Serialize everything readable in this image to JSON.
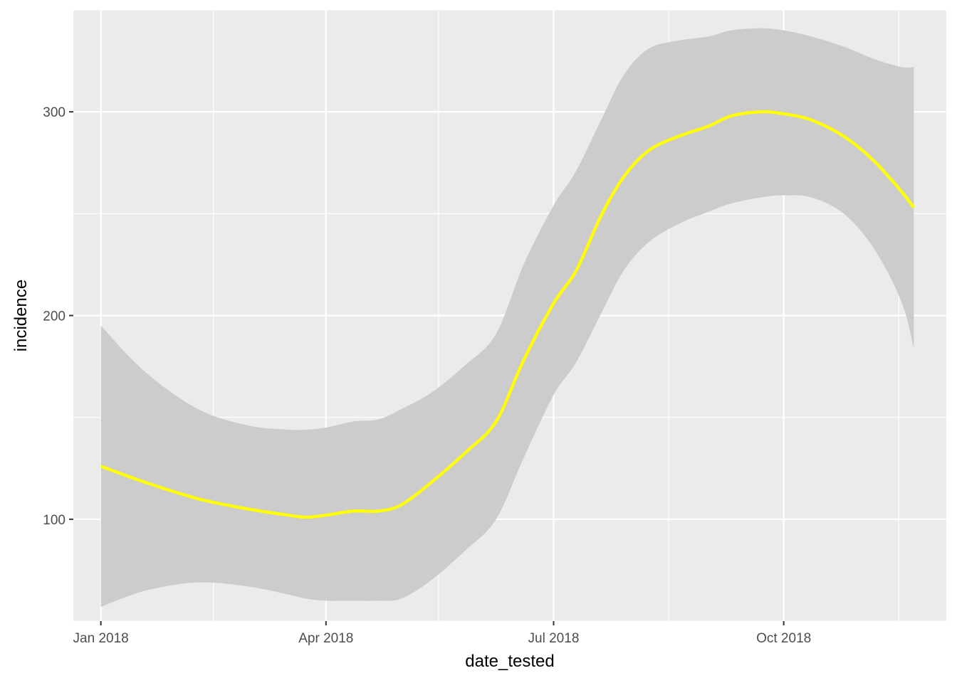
{
  "chart_data": {
    "type": "line",
    "xlabel": "date_tested",
    "ylabel": "incidence",
    "x_range": [
      "2017-12-21",
      "2018-12-05"
    ],
    "ylim": [
      50,
      350
    ],
    "grid": true,
    "legend": "none",
    "x_ticks": [
      {
        "date": "2018-01-01",
        "label": "Jan 2018"
      },
      {
        "date": "2018-04-01",
        "label": "Apr 2018"
      },
      {
        "date": "2018-07-01",
        "label": "Jul 2018"
      },
      {
        "date": "2018-10-01",
        "label": "Oct 2018"
      }
    ],
    "x_minor_ticks": [
      "2018-02-15",
      "2018-05-16",
      "2018-08-16",
      "2018-11-16"
    ],
    "y_ticks": [
      100,
      200,
      300
    ],
    "y_minor_ticks": [
      50,
      150,
      250,
      350
    ],
    "series": [
      {
        "line_color": "#ffff00",
        "ribbon_color": "#cccccc",
        "points": [
          {
            "x": "2018-01-01",
            "y": 126,
            "lo": 57,
            "hi": 195
          },
          {
            "x": "2018-01-19",
            "y": 118,
            "lo": 65,
            "hi": 172
          },
          {
            "x": "2018-02-09",
            "y": 110,
            "lo": 69,
            "hi": 154
          },
          {
            "x": "2018-03-01",
            "y": 105,
            "lo": 67,
            "hi": 146
          },
          {
            "x": "2018-03-17",
            "y": 102,
            "lo": 63,
            "hi": 144
          },
          {
            "x": "2018-03-24",
            "y": 101,
            "lo": 61,
            "hi": 144
          },
          {
            "x": "2018-04-01",
            "y": 102,
            "lo": 60,
            "hi": 145
          },
          {
            "x": "2018-04-12",
            "y": 104,
            "lo": 60,
            "hi": 148
          },
          {
            "x": "2018-04-22",
            "y": 104,
            "lo": 60,
            "hi": 149
          },
          {
            "x": "2018-05-01",
            "y": 107,
            "lo": 61,
            "hi": 154
          },
          {
            "x": "2018-05-13",
            "y": 118,
            "lo": 70,
            "hi": 162
          },
          {
            "x": "2018-05-27",
            "y": 133,
            "lo": 85,
            "hi": 176
          },
          {
            "x": "2018-06-08",
            "y": 148,
            "lo": 100,
            "hi": 191
          },
          {
            "x": "2018-06-19",
            "y": 178,
            "lo": 130,
            "hi": 225
          },
          {
            "x": "2018-07-01",
            "y": 206,
            "lo": 161,
            "hi": 254
          },
          {
            "x": "2018-07-10",
            "y": 222,
            "lo": 177,
            "hi": 271
          },
          {
            "x": "2018-07-20",
            "y": 249,
            "lo": 201,
            "hi": 296
          },
          {
            "x": "2018-07-29",
            "y": 268,
            "lo": 222,
            "hi": 318
          },
          {
            "x": "2018-08-08",
            "y": 281,
            "lo": 236,
            "hi": 331
          },
          {
            "x": "2018-08-20",
            "y": 288,
            "lo": 245,
            "hi": 335
          },
          {
            "x": "2018-09-01",
            "y": 293,
            "lo": 251,
            "hi": 337
          },
          {
            "x": "2018-09-10",
            "y": 298,
            "lo": 255,
            "hi": 340
          },
          {
            "x": "2018-09-22",
            "y": 300,
            "lo": 258,
            "hi": 341
          },
          {
            "x": "2018-10-01",
            "y": 299,
            "lo": 259,
            "hi": 340
          },
          {
            "x": "2018-10-12",
            "y": 296,
            "lo": 258,
            "hi": 337
          },
          {
            "x": "2018-10-25",
            "y": 288,
            "lo": 250,
            "hi": 332
          },
          {
            "x": "2018-11-06",
            "y": 276,
            "lo": 233,
            "hi": 326
          },
          {
            "x": "2018-11-17",
            "y": 261,
            "lo": 207,
            "hi": 322
          },
          {
            "x": "2018-11-22",
            "y": 253,
            "lo": 184,
            "hi": 322
          }
        ]
      }
    ]
  }
}
